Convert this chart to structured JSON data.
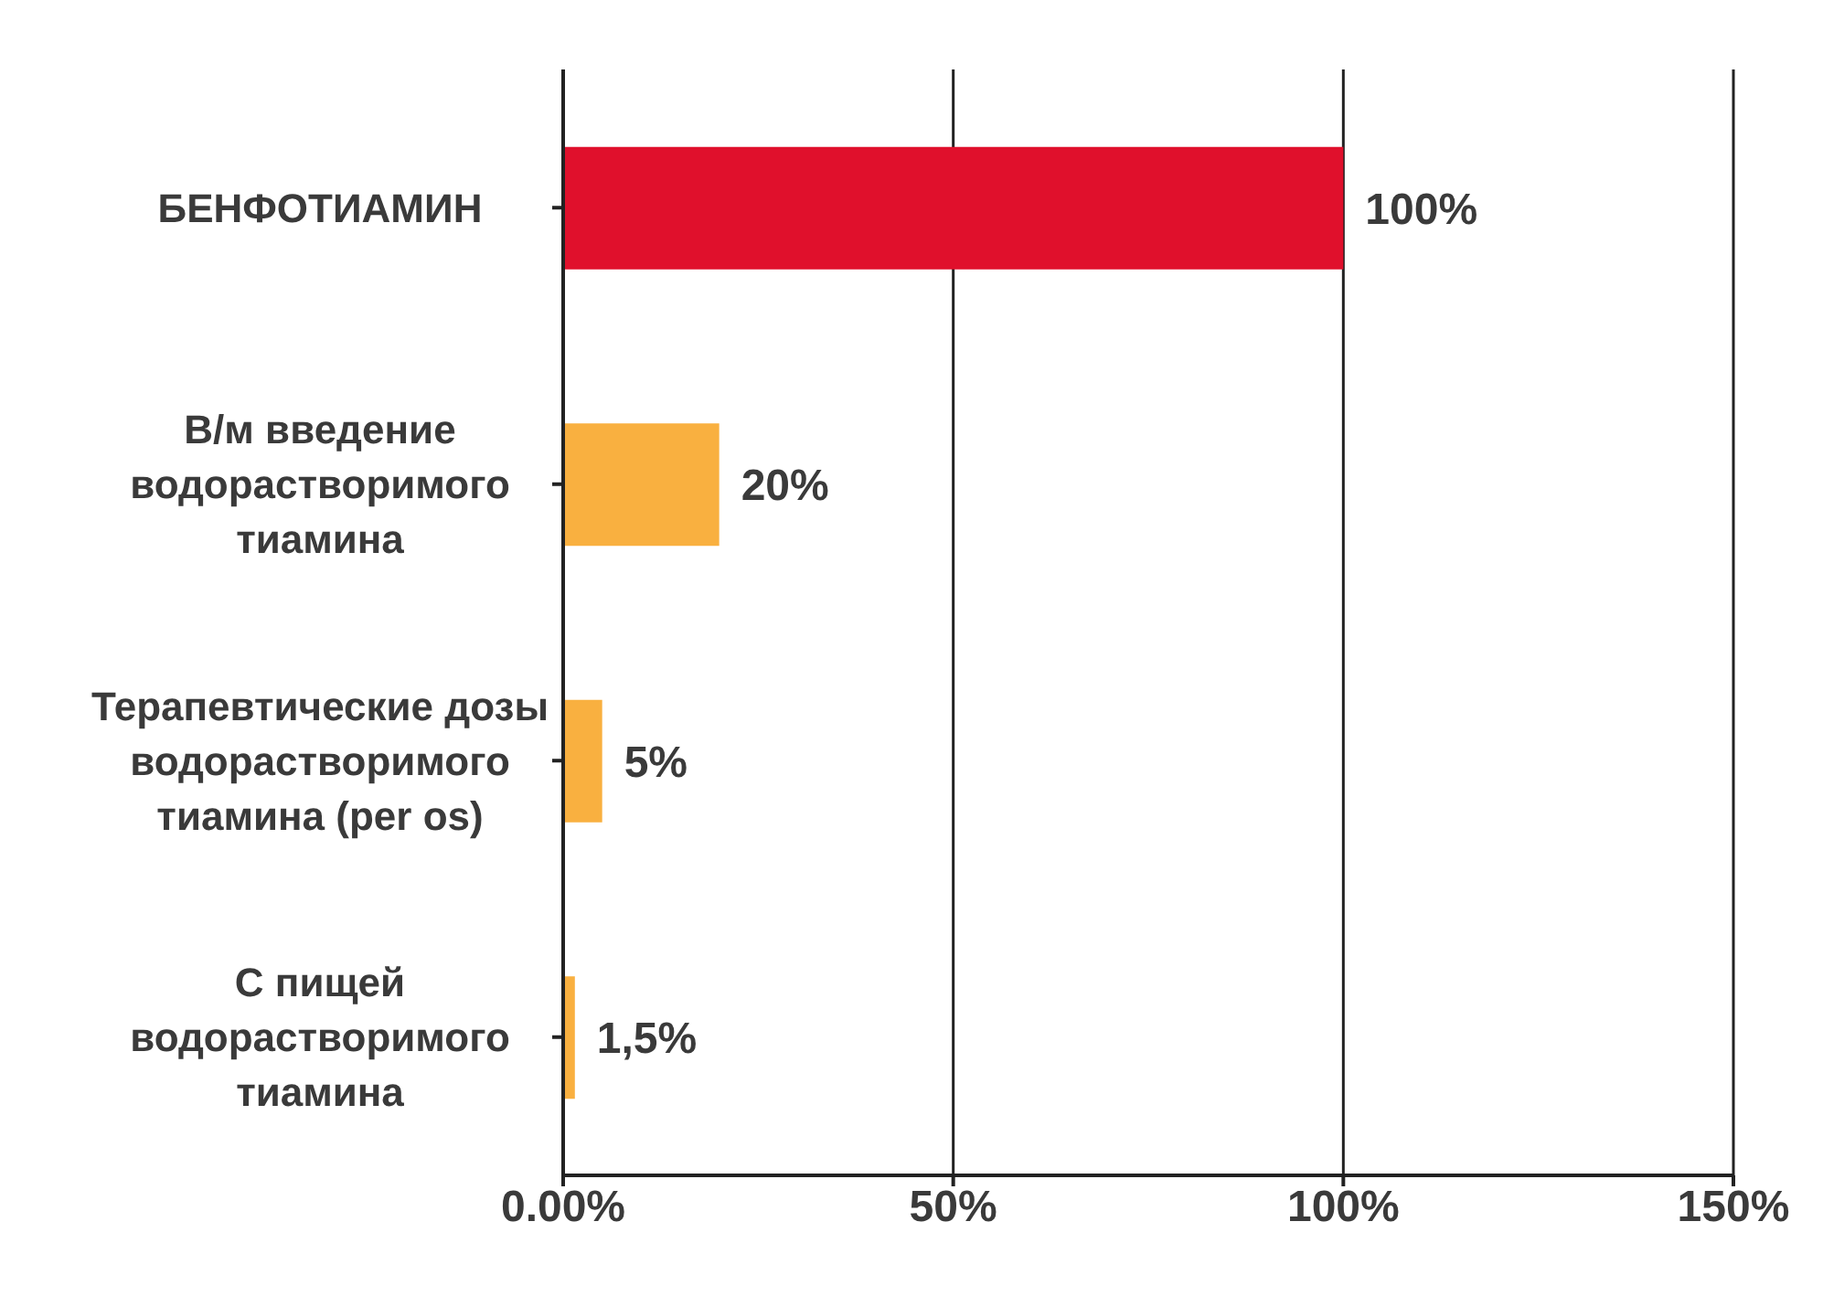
{
  "chart_data": {
    "type": "bar",
    "orientation": "horizontal",
    "categories": [
      "БЕНФОТИАМИН",
      "В/м введение водорастворимого тиамина",
      "Терапевтические дозы водорастворимого тиамина (per os)",
      "С пищей водорастворимого тиамина"
    ],
    "values": [
      100,
      20,
      5,
      1.5
    ],
    "colors": [
      "#e0102c",
      "#f9b040",
      "#f9b040",
      "#f9b040"
    ],
    "value_labels": [
      "100%",
      "20%",
      "5%",
      "1,5%"
    ],
    "xlim": [
      0,
      150
    ],
    "xticks": [
      {
        "value": 0,
        "label": "0.00%"
      },
      {
        "value": 50,
        "label": "50%"
      },
      {
        "value": 100,
        "label": "100%"
      },
      {
        "value": 150,
        "label": "150%"
      }
    ],
    "grid": "x"
  }
}
